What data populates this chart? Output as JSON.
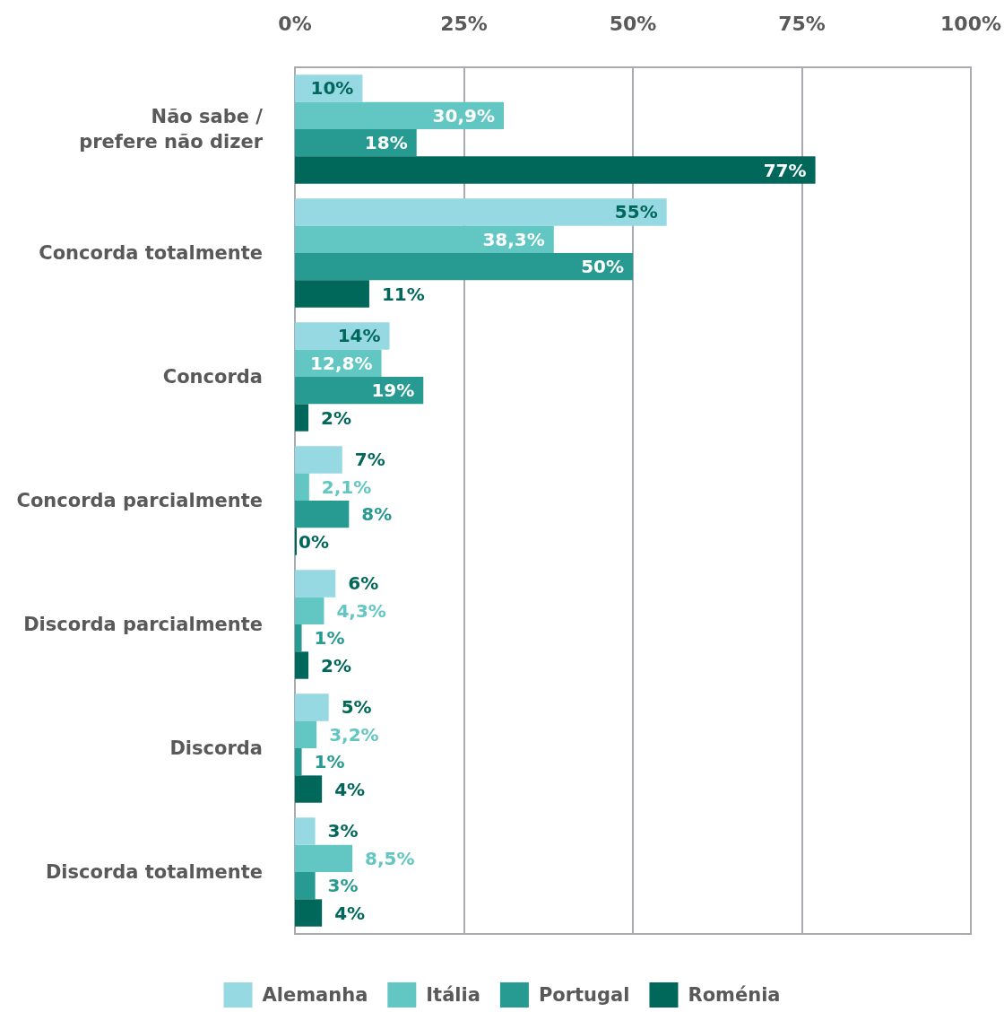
{
  "chart_data": {
    "type": "bar",
    "orientation": "horizontal",
    "categories": [
      "Não sabe /\nprefere não dizer",
      "Concorda totalmente",
      "Concorda",
      "Concorda parcialmente",
      "Discorda parcialmente",
      "Discorda",
      "Discorda totalmente"
    ],
    "series": [
      {
        "name": "Alemanha",
        "color": "#97d9e3",
        "values": [
          10,
          55,
          14,
          7,
          6,
          5,
          3
        ],
        "value_labels": [
          "10%",
          "55%",
          "14%",
          "7%",
          "6%",
          "5%",
          "3%"
        ]
      },
      {
        "name": "Itália",
        "color": "#62c6c2",
        "values": [
          30.9,
          38.3,
          12.8,
          2.1,
          4.3,
          3.2,
          8.5
        ],
        "value_labels": [
          "30,9%",
          "38,3%",
          "12,8%",
          "2,1%",
          "4,3%",
          "3,2%",
          "8,5%"
        ]
      },
      {
        "name": "Portugal",
        "color": "#279a91",
        "values": [
          18,
          50,
          19,
          8,
          1,
          1,
          3
        ],
        "value_labels": [
          "18%",
          "50%",
          "19%",
          "8%",
          "1%",
          "1%",
          "3%"
        ]
      },
      {
        "name": "Roménia",
        "color": "#00675b",
        "values": [
          77,
          11,
          2,
          0,
          2,
          4,
          4
        ],
        "value_labels": [
          "77%",
          "11%",
          "2%",
          "0%",
          "2%",
          "4%",
          "4%"
        ]
      }
    ],
    "xlim": [
      0,
      100
    ],
    "xticks": [
      {
        "value": 0,
        "label": "0%"
      },
      {
        "value": 25,
        "label": "25%"
      },
      {
        "value": 50,
        "label": "50%"
      },
      {
        "value": 75,
        "label": "75%"
      },
      {
        "value": 100,
        "label": "100%"
      }
    ],
    "grid": "x",
    "legend": "bottom"
  }
}
